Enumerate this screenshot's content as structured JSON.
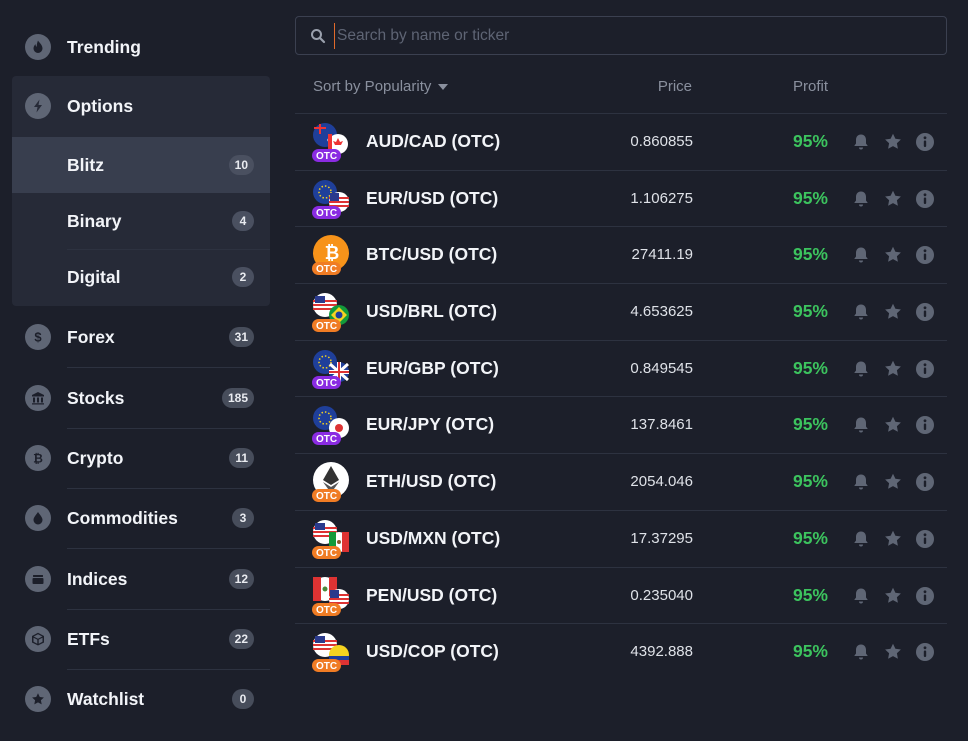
{
  "sidebar": {
    "trending": {
      "label": "Trending",
      "icon": "flame-icon"
    },
    "options": {
      "label": "Options",
      "icon": "lightning-icon"
    },
    "sub_items": [
      {
        "label": "Blitz",
        "count": "10"
      },
      {
        "label": "Binary",
        "count": "4"
      },
      {
        "label": "Digital",
        "count": "2"
      }
    ],
    "items": [
      {
        "label": "Forex",
        "count": "31",
        "icon": "dollar-icon"
      },
      {
        "label": "Stocks",
        "count": "185",
        "icon": "bank-icon"
      },
      {
        "label": "Crypto",
        "count": "11",
        "icon": "bitcoin-icon"
      },
      {
        "label": "Commodities",
        "count": "3",
        "icon": "drop-icon"
      },
      {
        "label": "Indices",
        "count": "12",
        "icon": "layers-icon"
      },
      {
        "label": "ETFs",
        "count": "22",
        "icon": "box-icon"
      },
      {
        "label": "Watchlist",
        "count": "0",
        "icon": "star-icon"
      }
    ]
  },
  "search": {
    "placeholder": "Search by name or ticker",
    "value": ""
  },
  "list_header": {
    "sort_label": "Sort by Popularity",
    "price_label": "Price",
    "profit_label": "Profit"
  },
  "assets": [
    {
      "pair": "AUD/CAD (OTC)",
      "price": "0.860855",
      "profit": "95%",
      "badge": "OTC"
    },
    {
      "pair": "EUR/USD (OTC)",
      "price": "1.106275",
      "profit": "95%",
      "badge": "OTC"
    },
    {
      "pair": "BTC/USD (OTC)",
      "price": "27411.19",
      "profit": "95%",
      "badge": "OTC"
    },
    {
      "pair": "USD/BRL (OTC)",
      "price": "4.653625",
      "profit": "95%",
      "badge": "OTC"
    },
    {
      "pair": "EUR/GBP (OTC)",
      "price": "0.849545",
      "profit": "95%",
      "badge": "OTC"
    },
    {
      "pair": "EUR/JPY (OTC)",
      "price": "137.8461",
      "profit": "95%",
      "badge": "OTC"
    },
    {
      "pair": "ETH/USD (OTC)",
      "price": "2054.046",
      "profit": "95%",
      "badge": "OTC"
    },
    {
      "pair": "USD/MXN (OTC)",
      "price": "17.37295",
      "profit": "95%",
      "badge": "OTC"
    },
    {
      "pair": "PEN/USD (OTC)",
      "price": "0.235040",
      "profit": "95%",
      "badge": "OTC"
    },
    {
      "pair": "USD/COP (OTC)",
      "price": "4392.888",
      "profit": "95%",
      "badge": "OTC"
    }
  ],
  "colors": {
    "background": "#1c1f2a",
    "active_item": "#383e4e",
    "profit_green": "#3cc35e",
    "otc_orange": "#f07c24",
    "otc_purple": "#8a2be2",
    "caret_orange": "#e06a2b"
  }
}
